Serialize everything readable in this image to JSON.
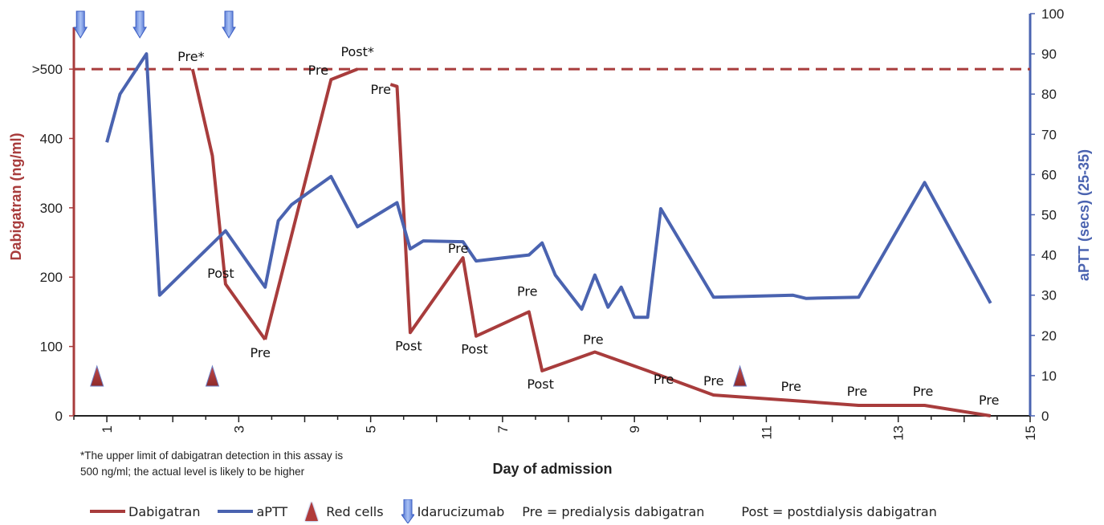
{
  "chart_data": {
    "type": "line",
    "xlabel": "Day of admission",
    "ylabel_left": "Dabigatran (ng/ml)",
    "ylabel_right": "aPTT (secs) (25-35)",
    "xlim": [
      0.5,
      15
    ],
    "ylim_left": [
      0,
      580
    ],
    "ylim_right": [
      0,
      100
    ],
    "x_ticks": [
      "1",
      "3",
      "5",
      "7",
      "9",
      "11",
      "13",
      "15"
    ],
    "x_tick_values": [
      1,
      3,
      5,
      7,
      9,
      11,
      13,
      15
    ],
    "y_left_ticks": [
      "0",
      "100",
      "200",
      "300",
      "400",
      ">500"
    ],
    "y_left_tick_values": [
      0,
      100,
      200,
      300,
      400,
      500
    ],
    "y_right_ticks": [
      "0",
      "10",
      "20",
      "30",
      "40",
      "50",
      "60",
      "70",
      "80",
      "90",
      "100"
    ],
    "y_right_tick_values": [
      0,
      10,
      20,
      30,
      40,
      50,
      60,
      70,
      80,
      90,
      100
    ],
    "reference_line_left": 500,
    "series": [
      {
        "name": "Dabigatran",
        "axis": "left",
        "color": "#a83c3c",
        "segments": [
          [
            [
              2.3,
              500
            ],
            [
              2.6,
              375
            ],
            [
              2.8,
              190
            ],
            [
              3.4,
              110
            ]
          ],
          [
            [
              3.4,
              110
            ],
            [
              4.4,
              485
            ],
            [
              4.8,
              500
            ]
          ],
          [
            [
              5.3,
              478
            ],
            [
              5.4,
              475
            ],
            [
              5.6,
              120
            ],
            [
              6.4,
              228
            ],
            [
              6.6,
              115
            ],
            [
              7.4,
              150
            ],
            [
              7.6,
              65
            ],
            [
              8.4,
              92
            ],
            [
              9.2,
              65
            ],
            [
              10.2,
              30
            ],
            [
              11.4,
              22
            ],
            [
              12.4,
              15
            ],
            [
              13.4,
              15
            ],
            [
              14.4,
              0
            ]
          ]
        ]
      },
      {
        "name": "aPTT",
        "axis": "right",
        "color": "#4a63b0",
        "x": [
          1.0,
          1.2,
          1.6,
          1.8,
          2.8,
          3.4,
          3.6,
          3.8,
          4.4,
          4.8,
          5.4,
          5.6,
          5.8,
          6.4,
          6.6,
          7.4,
          7.6,
          7.8,
          8.2,
          8.4,
          8.6,
          8.8,
          9.0,
          9.2,
          9.4,
          10.2,
          11.4,
          11.6,
          12.4,
          13.4,
          14.4
        ],
        "values": [
          68,
          80,
          90,
          30,
          46,
          32,
          48.5,
          52.5,
          59.5,
          47,
          53,
          41.5,
          43.5,
          43.3,
          38.5,
          40,
          43,
          35,
          26.5,
          35,
          27,
          32,
          24.5,
          24.5,
          51.5,
          29.5,
          30,
          29.2,
          29.5,
          58,
          28
        ]
      }
    ],
    "point_labels": [
      {
        "text": "Pre*",
        "x": 2.3,
        "y": 500
      },
      {
        "text": "Post",
        "x": 2.8,
        "y": 190
      },
      {
        "text": "Pre",
        "x": 3.4,
        "y": 110
      },
      {
        "text": "Pre",
        "x": 4.4,
        "y": 485
      },
      {
        "text": "Post*",
        "x": 4.8,
        "y": 500
      },
      {
        "text": "Pre",
        "x": 5.3,
        "y": 478
      },
      {
        "text": "Post",
        "x": 5.6,
        "y": 120
      },
      {
        "text": "Pre",
        "x": 6.4,
        "y": 228
      },
      {
        "text": "Post",
        "x": 6.6,
        "y": 115
      },
      {
        "text": "Pre",
        "x": 7.4,
        "y": 150
      },
      {
        "text": "Post",
        "x": 7.6,
        "y": 65
      },
      {
        "text": "Pre",
        "x": 8.4,
        "y": 92
      },
      {
        "text": "Pre",
        "x": 9.2,
        "y": 65
      },
      {
        "text": "Pre",
        "x": 10.2,
        "y": 30
      },
      {
        "text": "Pre",
        "x": 11.4,
        "y": 22
      },
      {
        "text": "Pre",
        "x": 12.4,
        "y": 15
      },
      {
        "text": "Pre",
        "x": 13.4,
        "y": 15
      },
      {
        "text": "Pre",
        "x": 14.4,
        "y": 0
      }
    ],
    "red_cells_days": [
      0.85,
      2.6,
      10.6
    ],
    "idarucizumab_days": [
      0.6,
      1.5,
      2.85
    ],
    "colors": {
      "dabigatran": "#a83c3c",
      "aptt": "#4a63b0",
      "red_cells": "#b03a3a",
      "idarucizumab": "#6d8fe0"
    }
  },
  "footnote": {
    "line1": "*The upper limit of dabigatran detection in this assay is",
    "line2": "500 ng/ml; the actual level is likely to be higher"
  },
  "legend": {
    "dabigatran": "Dabigatran",
    "aptt": "aPTT",
    "red_cells": "Red cells",
    "idarucizumab": "Idarucizumab",
    "pre": "Pre = predialysis dabigatran",
    "post": "Post = postdialysis dabigatran"
  }
}
